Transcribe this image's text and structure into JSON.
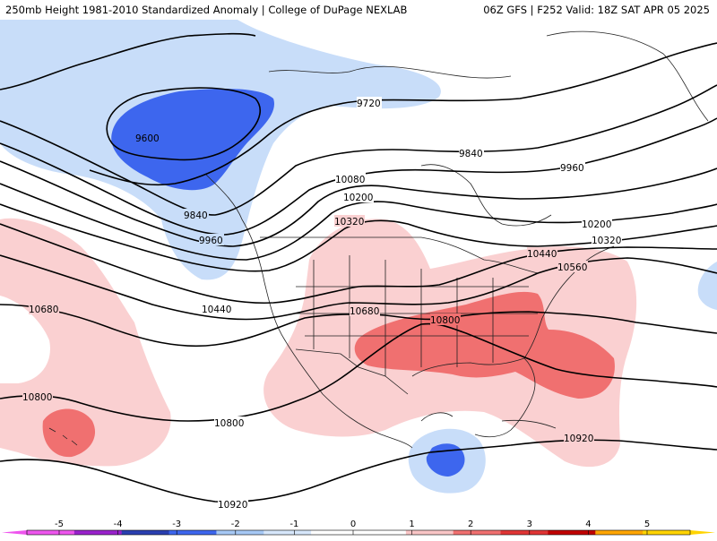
{
  "header": {
    "left_title": "250mb Height 1981-2010 Standardized Anomaly | College of DuPage NEXLAB",
    "right_title": "06Z GFS | F252 Valid: 18Z SAT APR 05 2025"
  },
  "contours": [
    {
      "id": "c9600",
      "label": "9600"
    },
    {
      "id": "c9720",
      "label": "9720"
    },
    {
      "id": "c9840",
      "label": "9840"
    },
    {
      "id": "c9960",
      "label": "9960"
    },
    {
      "id": "c10080",
      "label": "10080"
    },
    {
      "id": "c10200",
      "label": "10200"
    },
    {
      "id": "c10320",
      "label": "10320"
    },
    {
      "id": "c10440",
      "label": "10440"
    },
    {
      "id": "c10560",
      "label": "10560"
    },
    {
      "id": "c10680",
      "label": "10680"
    },
    {
      "id": "c10800",
      "label": "10800"
    },
    {
      "id": "c10920",
      "label": "10920"
    }
  ],
  "colorbar": {
    "ticks": [
      "-5",
      "-4",
      "-3",
      "-2",
      "-1",
      "0",
      "1",
      "2",
      "3",
      "4",
      "5"
    ],
    "colors": [
      "#ee55ee",
      "#9a22cc",
      "#2a3fb0",
      "#3d66ee",
      "#a6c8f5",
      "#d7e7fb",
      "#ffffff",
      "#ffffff",
      "#f9c5c6",
      "#f07070",
      "#e03535",
      "#c00000",
      "#ffa500",
      "#ffd400"
    ]
  }
}
